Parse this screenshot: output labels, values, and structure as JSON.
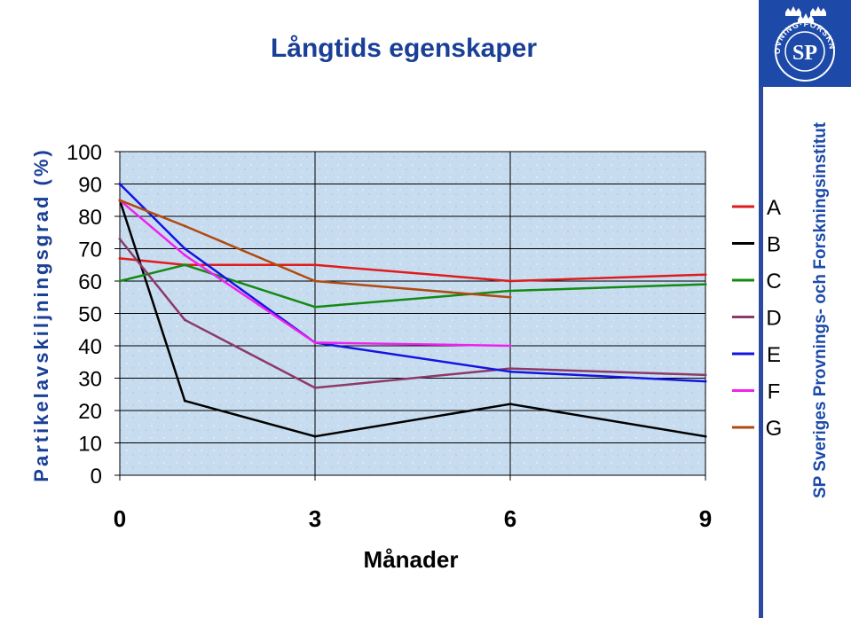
{
  "slide": {
    "org_name": "SP Sveriges Provnings- och Forskningsinstitut",
    "logo": {
      "initials": "SP",
      "ring_text": "PROVNING·FORSKNING",
      "crowns_icon": "three-crowns-icon",
      "color": "#1d4aa8"
    }
  },
  "chart_data": {
    "type": "line",
    "title": "Långtids egenskaper",
    "xlabel": "Månader",
    "ylabel": "Partikelavskiljningsgrad (%)",
    "xlim": [
      0,
      9
    ],
    "ylim": [
      0,
      100
    ],
    "x_ticks": [
      "0",
      "3",
      "6",
      "9"
    ],
    "y_ticks": [
      "0",
      "10",
      "20",
      "30",
      "40",
      "50",
      "60",
      "70",
      "80",
      "90",
      "100"
    ],
    "grid": true,
    "legend_position": "right",
    "series": [
      {
        "name": "A",
        "color": "#e01b1b",
        "x": [
          0,
          1,
          3,
          6,
          9
        ],
        "y": [
          67,
          65,
          65,
          60,
          62
        ]
      },
      {
        "name": "B",
        "color": "#000000",
        "x": [
          0,
          1,
          3,
          6,
          9
        ],
        "y": [
          85,
          23,
          12,
          22,
          12
        ]
      },
      {
        "name": "C",
        "color": "#148a14",
        "x": [
          0,
          1,
          3,
          6,
          9
        ],
        "y": [
          60,
          65,
          52,
          57,
          59
        ]
      },
      {
        "name": "D",
        "color": "#8c3a68",
        "x": [
          0,
          1,
          3,
          6,
          9
        ],
        "y": [
          73,
          48,
          27,
          33,
          31
        ]
      },
      {
        "name": "E",
        "color": "#1414e0",
        "x": [
          0,
          1,
          3,
          6,
          9
        ],
        "y": [
          90,
          70,
          41,
          32,
          29
        ]
      },
      {
        "name": "F",
        "color": "#ee22ee",
        "x": [
          0,
          1,
          3,
          6
        ],
        "y": [
          85,
          68,
          41,
          40
        ]
      },
      {
        "name": "G",
        "color": "#b04a10",
        "x": [
          0,
          1,
          3,
          6
        ],
        "y": [
          85,
          77,
          60,
          55
        ]
      }
    ]
  }
}
